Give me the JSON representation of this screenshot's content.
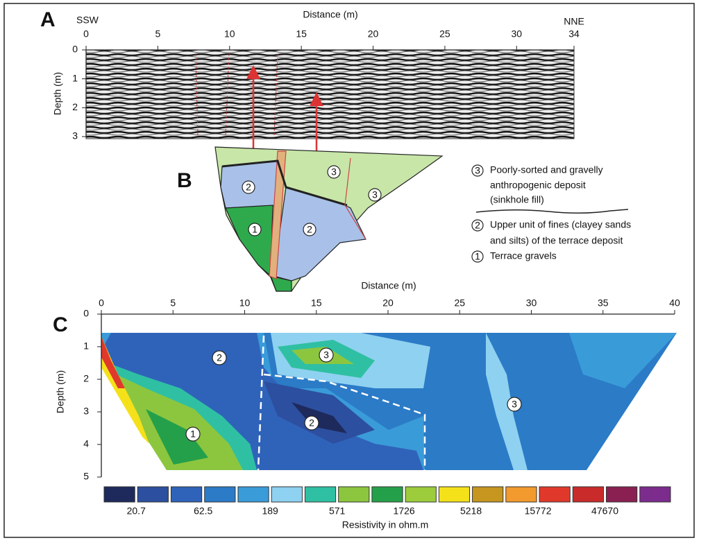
{
  "panel_a": {
    "letter": "A",
    "left_label": "SSW",
    "right_label": "NNE",
    "x_title": "Distance (m)",
    "y_title": "Depth (m)",
    "xlim": [
      0,
      34
    ],
    "xticks": [
      0,
      5,
      10,
      15,
      20,
      25,
      30,
      34
    ],
    "ylim": [
      0,
      3
    ],
    "yticks": [
      0,
      1,
      2,
      3
    ]
  },
  "panel_b": {
    "letter": "B",
    "units": [
      "3",
      "3",
      "2",
      "1",
      "2"
    ],
    "legend": [
      {
        "symbol": "3",
        "lines": [
          "Poorly-sorted and gravelly",
          "anthropogenic deposit",
          "(sinkhole fill)"
        ]
      },
      {
        "symbol": "2",
        "lines": [
          "Upper unit of fines (clayey sands",
          "and silts) of the terrace deposit"
        ]
      },
      {
        "symbol": "1",
        "lines": [
          "Terrace gravels"
        ]
      }
    ]
  },
  "panel_c": {
    "letter": "C",
    "x_title": "Distance (m)",
    "y_title": "Depth (m)",
    "xlim": [
      0,
      40
    ],
    "xticks": [
      0,
      5,
      10,
      15,
      20,
      25,
      30,
      35,
      40
    ],
    "ylim": [
      0,
      5
    ],
    "yticks": [
      0,
      1,
      2,
      3,
      4,
      5
    ],
    "units": [
      "2",
      "3",
      "2",
      "1",
      "3"
    ],
    "colorbar": {
      "colors": [
        "#1e2a5c",
        "#2d4f9f",
        "#2f63b9",
        "#2b7bc7",
        "#3a9bd9",
        "#8fd1f0",
        "#2fc0a3",
        "#8cc63f",
        "#25a04a",
        "#9ccc3c",
        "#f4e11a",
        "#c6961f",
        "#f29a2e",
        "#e0392b",
        "#c92b2b",
        "#8a2052",
        "#7b2c8c"
      ],
      "labels": [
        20.7,
        62.5,
        189,
        571,
        1726,
        5218,
        15772,
        47670
      ],
      "title": "Resistivity in ohm.m"
    }
  }
}
